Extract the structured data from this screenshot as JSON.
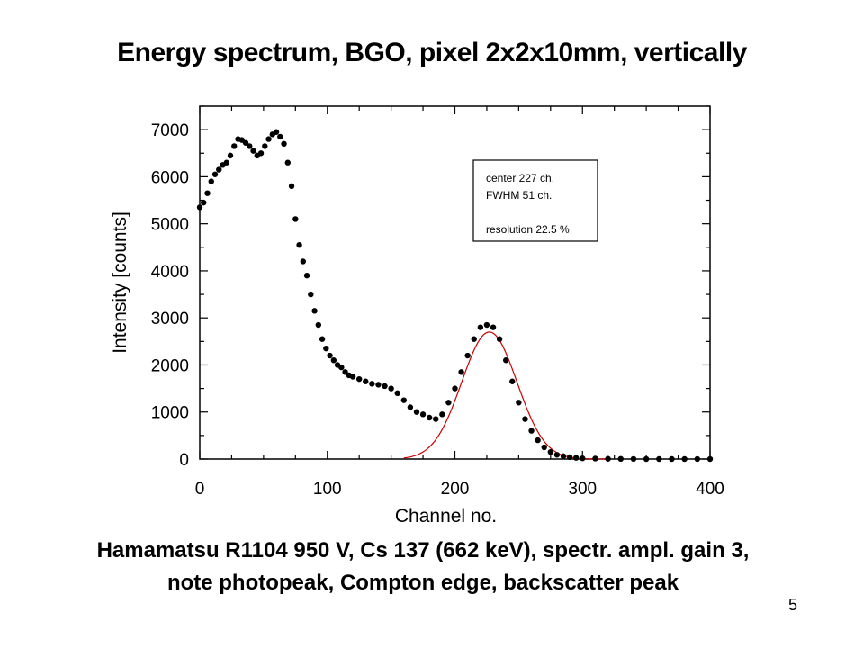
{
  "slide": {
    "title": "Energy spectrum,  BGO, pixel 2x2x10mm, vertically",
    "caption_line1": "Hamamatsu R1104 950 V, Cs 137 (662 keV),  spectr. ampl. gain 3,",
    "caption_line2": "note photopeak, Compton edge, backscatter peak",
    "page_number": "5"
  },
  "chart_data": {
    "type": "scatter",
    "title": "",
    "xlabel": "Channel no.",
    "ylabel": "Intensity [counts]",
    "xlim": [
      0,
      400
    ],
    "ylim": [
      0,
      7500
    ],
    "x_ticks": [
      0,
      100,
      200,
      300,
      400
    ],
    "y_ticks": [
      0,
      1000,
      2000,
      3000,
      4000,
      5000,
      6000,
      7000
    ],
    "grid": false,
    "colors": {
      "points": "#000000",
      "fit": "#cc0000"
    },
    "series": [
      {
        "kind": "points",
        "x": [
          0,
          3,
          6,
          9,
          12,
          15,
          18,
          21,
          24,
          27,
          30,
          33,
          36,
          39,
          42,
          45,
          48,
          51,
          54,
          57,
          60,
          63,
          66,
          69,
          72,
          75,
          78,
          81,
          84,
          87,
          90,
          93,
          96,
          99,
          102,
          105,
          108,
          111,
          114,
          117,
          120,
          125,
          130,
          135,
          140,
          145,
          150,
          155,
          160,
          165,
          170,
          175,
          180,
          185,
          190,
          195,
          200,
          205,
          210,
          215,
          220,
          225,
          230,
          235,
          240,
          245,
          250,
          255,
          260,
          265,
          270,
          275,
          280,
          285,
          290,
          295,
          300,
          310,
          320,
          330,
          340,
          350,
          360,
          370,
          380,
          390,
          400
        ],
        "y": [
          5350,
          5450,
          5650,
          5900,
          6050,
          6150,
          6250,
          6300,
          6450,
          6650,
          6800,
          6780,
          6720,
          6650,
          6550,
          6450,
          6500,
          6650,
          6800,
          6900,
          6950,
          6850,
          6700,
          6300,
          5800,
          5100,
          4550,
          4200,
          3900,
          3500,
          3150,
          2850,
          2550,
          2350,
          2200,
          2100,
          2000,
          1950,
          1850,
          1780,
          1750,
          1700,
          1650,
          1600,
          1580,
          1550,
          1500,
          1400,
          1250,
          1100,
          1000,
          950,
          880,
          850,
          950,
          1200,
          1500,
          1850,
          2200,
          2550,
          2800,
          2850,
          2800,
          2550,
          2100,
          1650,
          1200,
          850,
          600,
          400,
          250,
          150,
          90,
          60,
          40,
          25,
          15,
          10,
          5,
          3,
          2,
          0,
          0,
          0,
          0,
          0,
          0
        ]
      },
      {
        "kind": "gaussian-fit",
        "center": 227,
        "fwhm": 51,
        "amplitude": 2700,
        "x_range": [
          160,
          320
        ]
      }
    ],
    "annotation": {
      "lines": [
        "center 227 ch.",
        "FWHM   51 ch.",
        "",
        "resolution 22.5  %"
      ]
    }
  }
}
